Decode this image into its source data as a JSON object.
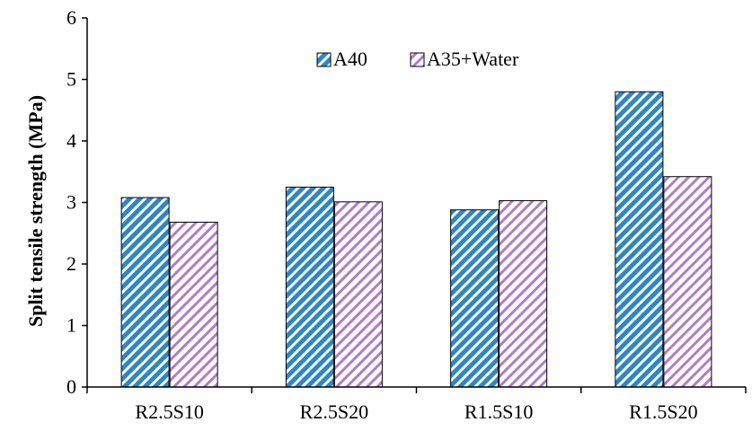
{
  "chart_data": {
    "type": "bar",
    "title": "",
    "xlabel": "",
    "ylabel": "Split tensile  strength (MPa)",
    "ylim": [
      0,
      6
    ],
    "yticks": [
      0,
      1,
      2,
      3,
      4,
      5,
      6
    ],
    "categories": [
      "R2.5S10",
      "R2.5S20",
      "R1.5S10",
      "R1.5S20"
    ],
    "series": [
      {
        "name": "A40",
        "values": [
          3.08,
          3.25,
          2.88,
          4.8
        ],
        "color": "#2e86c8",
        "pattern": "diagonal-hatch-blue"
      },
      {
        "name": "A35+Water",
        "values": [
          2.68,
          3.01,
          3.03,
          3.42
        ],
        "color": "#b07cc6",
        "pattern": "diagonal-hatch-purple"
      }
    ],
    "legend_position": "top-center",
    "grid": false
  }
}
